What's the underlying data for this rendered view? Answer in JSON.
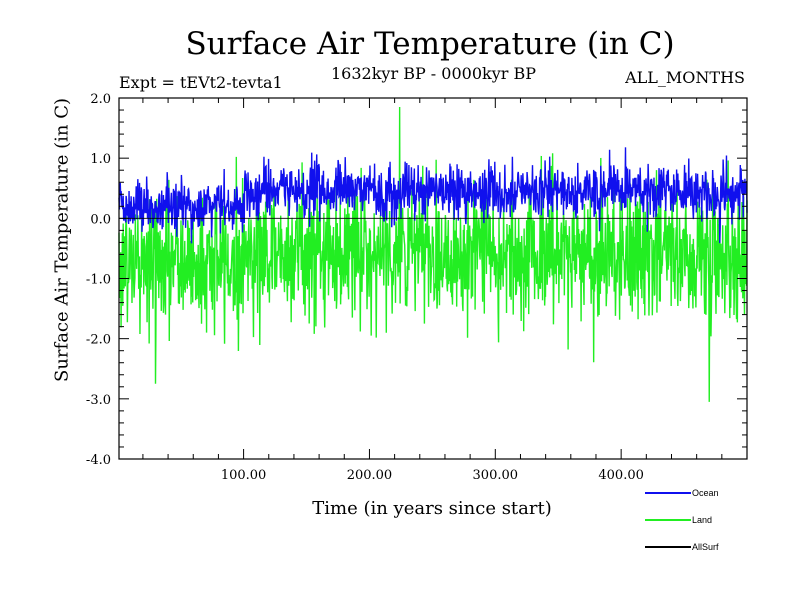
{
  "chart_data": {
    "type": "line",
    "title": "Surface Air Temperature (in C)",
    "subtitle": "1632kyr BP - 0000kyr BP",
    "left_annotation": "Expt = tEVt2-tevta1",
    "right_annotation": "ALL_MONTHS",
    "xlabel": "Time (in years since start)",
    "ylabel": "Surface Air Temperature (in C)",
    "xlim": [
      1,
      500
    ],
    "ylim": [
      -4.0,
      2.0
    ],
    "xticks": [
      100,
      200,
      300,
      400
    ],
    "xtick_labels": [
      "100.00",
      "200.00",
      "300.00",
      "400.00"
    ],
    "yticks": [
      -4.0,
      -3.0,
      -2.0,
      -1.0,
      0.0,
      1.0,
      2.0
    ],
    "ytick_labels": [
      "-4.0",
      "-3.0",
      "-2.0",
      "-1.0",
      "0.0",
      "1.0",
      "2.0"
    ],
    "reference_line": 0.0,
    "series": [
      {
        "name": "Land",
        "color": "#22ee22",
        "approx_mean_by_period": [
          [
            1,
            -0.75
          ],
          [
            100,
            -0.75
          ],
          [
            101,
            -0.55
          ],
          [
            500,
            -0.6
          ]
        ],
        "approx_min": -3.05,
        "approx_max": 1.85,
        "notable_points": [
          [
            224,
            1.85
          ],
          [
            470,
            -3.05
          ],
          [
            30,
            -2.75
          ]
        ]
      },
      {
        "name": "Ocean",
        "color": "#1010ee",
        "approx_mean_by_period": [
          [
            1,
            0.2
          ],
          [
            100,
            0.2
          ],
          [
            101,
            0.45
          ],
          [
            500,
            0.45
          ]
        ],
        "approx_min": -0.5,
        "approx_max": 1.3
      },
      {
        "name": "AllSurf",
        "color": "#000000"
      }
    ],
    "legend": [
      {
        "label": "Ocean",
        "color": "#1010ee"
      },
      {
        "label": "Land",
        "color": "#22ee22"
      },
      {
        "label": "AllSurf",
        "color": "#000000"
      }
    ],
    "legend_position": "bottom-right"
  }
}
